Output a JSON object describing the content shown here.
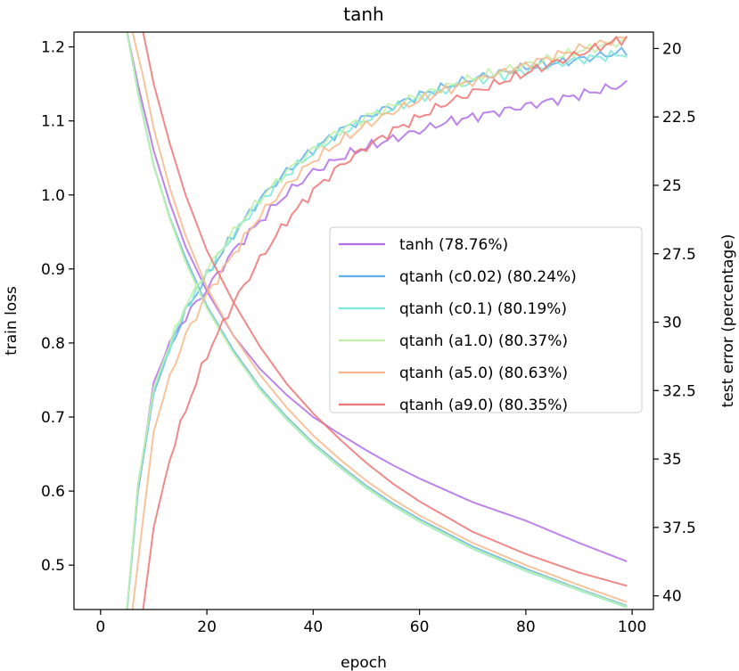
{
  "chart_data": {
    "type": "line",
    "title": "tanh",
    "xlabel": "epoch",
    "ylabel": "train loss",
    "y2label": "test error (percentage)",
    "xlim": [
      -5,
      104
    ],
    "ylim": [
      0.44,
      1.22
    ],
    "y2lim": [
      40.5,
      19.4
    ],
    "y2_inverted": true,
    "xticks": [
      0,
      20,
      40,
      60,
      80,
      100
    ],
    "xtick_labels": [
      "0",
      "20",
      "40",
      "60",
      "80",
      "100"
    ],
    "yticks": [
      0.5,
      0.6,
      0.7,
      0.8,
      0.9,
      1.0,
      1.1,
      1.2
    ],
    "ytick_labels": [
      "0.5",
      "0.6",
      "0.7",
      "0.8",
      "0.9",
      "1.0",
      "1.1",
      "1.2"
    ],
    "y2ticks": [
      20,
      22.5,
      25,
      27.5,
      30,
      32.5,
      35,
      37.5,
      40
    ],
    "y2tick_labels": [
      "20",
      "22.5",
      "25",
      "27.5",
      "30",
      "32.5",
      "35",
      "37.5",
      "40"
    ],
    "grid": false,
    "legend_position": "center-right",
    "series": [
      {
        "name": "tanh (78.76%)",
        "color": "#b06ee8",
        "loss_x": [
          5,
          7,
          10,
          13,
          16,
          20,
          25,
          30,
          35,
          40,
          45,
          50,
          55,
          60,
          70,
          80,
          90,
          99
        ],
        "loss": [
          1.22,
          1.15,
          1.06,
          0.99,
          0.93,
          0.87,
          0.81,
          0.765,
          0.73,
          0.7,
          0.677,
          0.655,
          0.635,
          0.617,
          0.585,
          0.56,
          0.53,
          0.505
        ],
        "err_x": [
          5,
          7,
          10,
          13,
          16,
          20,
          25,
          30,
          35,
          40,
          45,
          50,
          55,
          60,
          65,
          70,
          80,
          90,
          99
        ],
        "err": [
          40.5,
          36.2,
          32.2,
          30.8,
          29.8,
          28.8,
          27.4,
          26.3,
          25.3,
          24.5,
          24.0,
          23.6,
          23.3,
          23.0,
          22.7,
          22.5,
          22.1,
          21.7,
          21.3
        ]
      },
      {
        "name": "qtanh (c0.02) (80.24%)",
        "color": "#5fb0e8",
        "loss_x": [
          5,
          7,
          10,
          13,
          16,
          20,
          25,
          30,
          35,
          40,
          45,
          50,
          55,
          60,
          70,
          80,
          90,
          99
        ],
        "loss": [
          1.22,
          1.14,
          1.04,
          0.97,
          0.915,
          0.85,
          0.79,
          0.74,
          0.7,
          0.665,
          0.635,
          0.607,
          0.583,
          0.562,
          0.525,
          0.495,
          0.468,
          0.445
        ],
        "err_x": [
          5,
          7,
          10,
          13,
          16,
          20,
          25,
          30,
          35,
          40,
          45,
          50,
          55,
          60,
          65,
          70,
          80,
          90,
          99
        ],
        "err": [
          40.5,
          36.2,
          32.6,
          31.0,
          29.6,
          28.3,
          26.8,
          25.5,
          24.5,
          23.7,
          23.0,
          22.5,
          22.1,
          21.7,
          21.4,
          21.1,
          20.7,
          20.4,
          20.1
        ]
      },
      {
        "name": "qtanh (c0.1) (80.19%)",
        "color": "#7ee8d8",
        "loss_x": [
          5,
          7,
          10,
          13,
          16,
          20,
          25,
          30,
          35,
          40,
          45,
          50,
          55,
          60,
          70,
          80,
          90,
          99
        ],
        "loss": [
          1.22,
          1.14,
          1.04,
          0.97,
          0.91,
          0.848,
          0.787,
          0.737,
          0.697,
          0.662,
          0.632,
          0.604,
          0.58,
          0.559,
          0.522,
          0.492,
          0.466,
          0.443
        ],
        "err_x": [
          5,
          7,
          10,
          13,
          16,
          20,
          25,
          30,
          35,
          40,
          45,
          50,
          55,
          60,
          65,
          70,
          80,
          90,
          99
        ],
        "err": [
          40.5,
          36.0,
          32.5,
          30.9,
          29.5,
          28.2,
          26.8,
          25.6,
          24.6,
          23.8,
          23.1,
          22.6,
          22.2,
          21.8,
          21.5,
          21.2,
          20.8,
          20.4,
          20.2
        ]
      },
      {
        "name": "qtanh (a1.0) (80.37%)",
        "color": "#c2f0a8",
        "loss_x": [
          5,
          7,
          10,
          13,
          16,
          20,
          25,
          30,
          35,
          40,
          45,
          50,
          55,
          60,
          70,
          80,
          90,
          99
        ],
        "loss": [
          1.22,
          1.14,
          1.04,
          0.968,
          0.91,
          0.847,
          0.787,
          0.738,
          0.698,
          0.663,
          0.633,
          0.605,
          0.581,
          0.56,
          0.523,
          0.493,
          0.467,
          0.444
        ],
        "err_x": [
          5,
          7,
          10,
          13,
          16,
          20,
          25,
          30,
          35,
          40,
          45,
          50,
          55,
          60,
          65,
          70,
          80,
          90,
          99
        ],
        "err": [
          40.5,
          36.0,
          32.4,
          30.8,
          29.4,
          28.1,
          26.7,
          25.5,
          24.5,
          23.7,
          23.0,
          22.5,
          22.1,
          21.7,
          21.4,
          21.1,
          20.6,
          20.1,
          19.7
        ]
      },
      {
        "name": "qtanh (a5.0) (80.63%)",
        "color": "#f7b98c",
        "loss_x": [
          6,
          8,
          10,
          13,
          16,
          20,
          25,
          30,
          35,
          40,
          45,
          50,
          55,
          60,
          70,
          80,
          90,
          99
        ],
        "loss": [
          1.22,
          1.16,
          1.09,
          1.01,
          0.945,
          0.875,
          0.81,
          0.757,
          0.713,
          0.675,
          0.643,
          0.614,
          0.589,
          0.567,
          0.53,
          0.5,
          0.473,
          0.45
        ],
        "err_x": [
          6,
          8,
          10,
          13,
          16,
          20,
          25,
          30,
          35,
          40,
          45,
          50,
          55,
          60,
          65,
          70,
          80,
          90,
          99
        ],
        "err": [
          40.5,
          37.2,
          34.0,
          32.0,
          30.5,
          29.0,
          27.5,
          26.1,
          25.0,
          24.1,
          23.4,
          22.8,
          22.3,
          21.9,
          21.5,
          21.2,
          20.6,
          20.0,
          19.6
        ]
      },
      {
        "name": "qtanh (a9.0) (80.35%)",
        "color": "#f07474",
        "loss_x": [
          8,
          10,
          13,
          16,
          20,
          25,
          30,
          35,
          40,
          45,
          50,
          55,
          60,
          70,
          80,
          90,
          99
        ],
        "loss": [
          1.22,
          1.15,
          1.07,
          1.0,
          0.925,
          0.855,
          0.795,
          0.745,
          0.705,
          0.67,
          0.638,
          0.61,
          0.586,
          0.545,
          0.515,
          0.49,
          0.472
        ],
        "err_x": [
          8,
          10,
          13,
          16,
          20,
          25,
          30,
          35,
          40,
          45,
          50,
          55,
          60,
          65,
          70,
          80,
          90,
          99
        ],
        "err": [
          40.5,
          37.5,
          35.0,
          33.2,
          31.2,
          29.3,
          27.7,
          26.3,
          25.2,
          24.3,
          23.6,
          23.0,
          22.5,
          22.0,
          21.6,
          20.9,
          20.2,
          19.6
        ]
      }
    ]
  }
}
